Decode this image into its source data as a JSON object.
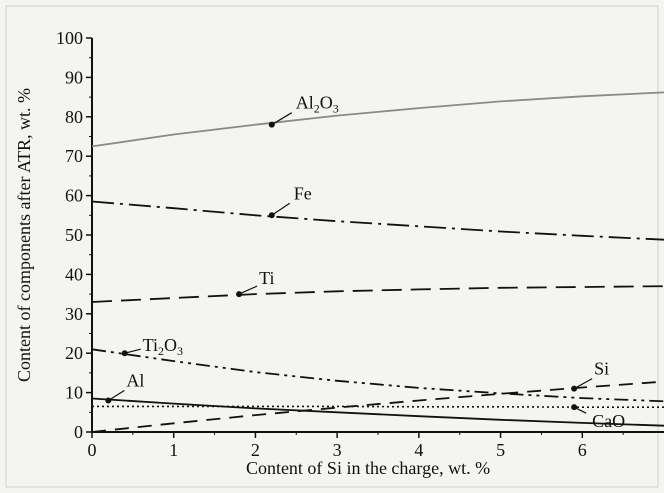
{
  "chart_data": {
    "type": "line",
    "title": "",
    "xlabel": "Content of Si in the charge, wt. %",
    "ylabel": "Content of components after ATR, wt. %",
    "xlim": [
      0,
      7
    ],
    "ylim": [
      0,
      100
    ],
    "xticks": [
      0,
      1,
      2,
      3,
      4,
      5,
      6
    ],
    "yticks": [
      0,
      10,
      20,
      30,
      40,
      50,
      60,
      70,
      80,
      90,
      100
    ],
    "grid": false,
    "legend": "none",
    "series": [
      {
        "name": "Al2O3",
        "label_main": "Al",
        "label_sub1": "2",
        "label_mid": "O",
        "label_sub2": "3",
        "style": "solid",
        "color": "#8a8a8a",
        "x": [
          0,
          1,
          2,
          3,
          4,
          5,
          6,
          7
        ],
        "y": [
          72.5,
          75.5,
          78,
          80.3,
          82.2,
          83.9,
          85.2,
          86.2
        ],
        "marker": [
          2.2,
          78
        ]
      },
      {
        "name": "Fe",
        "label_main": "Fe",
        "style": "dashdot",
        "color": "#111111",
        "x": [
          0,
          1,
          2,
          3,
          4,
          5,
          6,
          7
        ],
        "y": [
          58.5,
          56.8,
          55,
          53.5,
          52.2,
          50.9,
          49.8,
          48.8
        ],
        "marker": [
          2.2,
          55
        ]
      },
      {
        "name": "Ti",
        "label_main": "Ti",
        "style": "longdash",
        "color": "#111111",
        "x": [
          0,
          1,
          2,
          3,
          4,
          5,
          6,
          7
        ],
        "y": [
          33,
          34,
          35,
          35.7,
          36.2,
          36.6,
          36.8,
          37
        ],
        "marker": [
          1.8,
          35
        ]
      },
      {
        "name": "Ti2O3",
        "label_main": "Ti",
        "label_sub1": "2",
        "label_mid": "O",
        "label_sub2": "3",
        "style": "dashdotdot",
        "color": "#111111",
        "x": [
          0,
          1,
          2,
          3,
          4,
          5,
          6,
          7
        ],
        "y": [
          21,
          18,
          15.2,
          13,
          11.2,
          9.8,
          8.6,
          7.8
        ],
        "marker": [
          0.4,
          20
        ]
      },
      {
        "name": "Si",
        "label_main": "Si",
        "style": "dash",
        "color": "#111111",
        "x": [
          0,
          1,
          2,
          3,
          4,
          5,
          6,
          7
        ],
        "y": [
          0,
          2.2,
          4.3,
          6.2,
          8,
          9.7,
          11.3,
          12.8
        ],
        "marker": [
          5.9,
          11
        ]
      },
      {
        "name": "Al",
        "label_main": "Al",
        "style": "solid",
        "color": "#111111",
        "x": [
          0,
          1,
          2,
          3,
          4,
          5,
          6,
          7
        ],
        "y": [
          8.5,
          7.2,
          6,
          5,
          4,
          3.1,
          2.3,
          1.6
        ],
        "marker": [
          0.2,
          8
        ]
      },
      {
        "name": "CaO",
        "label_main": "CaO",
        "style": "dotted",
        "color": "#111111",
        "x": [
          0,
          1,
          2,
          3,
          4,
          5,
          6,
          7
        ],
        "y": [
          6.5,
          6.5,
          6.5,
          6.5,
          6.4,
          6.4,
          6.3,
          6.3
        ],
        "marker": [
          5.9,
          6.3
        ]
      }
    ]
  }
}
